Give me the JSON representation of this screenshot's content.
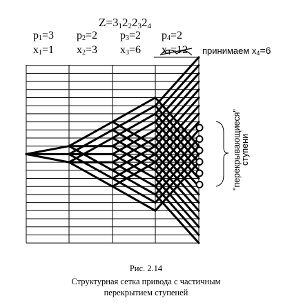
{
  "formula": {
    "prefix": "Z=",
    "base1": "3",
    "sub1": "1",
    "base2": "2",
    "sub2": "2",
    "base3": "2",
    "sub3": "3",
    "base4": "2",
    "sub4": "4"
  },
  "params": [
    {
      "p_name": "p",
      "p_sub": "1",
      "p_val": "=3",
      "x_name": "x",
      "x_sub": "1",
      "x_val": "=1"
    },
    {
      "p_name": "p",
      "p_sub": "2",
      "p_val": "=2",
      "x_name": "x",
      "x_sub": "2",
      "x_val": "=3"
    },
    {
      "p_name": "p",
      "p_sub": "3",
      "p_val": "=2",
      "x_name": "x",
      "x_sub": "3",
      "x_val": "=6"
    },
    {
      "p_name": "p",
      "p_sub": "4",
      "p_val": "=2",
      "x_name": "x",
      "x_sub": "4",
      "x_val": "=12"
    }
  ],
  "accepted_note": {
    "text": "принимаем x",
    "sub": "4",
    "value": "=6"
  },
  "side_label": {
    "line1": "\"перекрывающиеся\"",
    "line2": "ступени"
  },
  "caption": {
    "figure": "Рис. 2.14",
    "line1": "Структурная сетка привода с частичным",
    "line2": "перекрытием ступеней"
  },
  "grid": {
    "horizontal_lines": 24,
    "vertical_lines": 5,
    "overlap_markers": 6
  }
}
